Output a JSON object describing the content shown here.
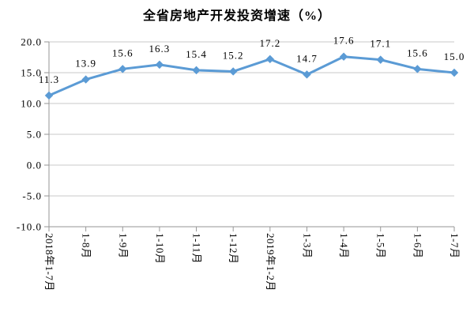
{
  "chart_data": {
    "type": "line",
    "title": "全省房地产开发投资增速（%）",
    "categories": [
      "2018年1-7月",
      "1-8月",
      "1-9月",
      "1-10月",
      "1-11月",
      "1-12月",
      "2019年1-2月",
      "1-3月",
      "1-4月",
      "1-5月",
      "1-6月",
      "1-7月"
    ],
    "values": [
      11.3,
      13.9,
      15.6,
      16.3,
      15.4,
      15.2,
      17.2,
      14.7,
      17.6,
      17.1,
      15.6,
      15.0
    ],
    "point_labels": [
      "11.3",
      "13.9",
      "15.6",
      "16.3",
      "15.4",
      "15.2",
      "17.2",
      "14.7",
      "17.6",
      "17.1",
      "15.6",
      "15.0"
    ],
    "xlabel": "",
    "ylabel": "",
    "ylim": [
      -10.0,
      20.0
    ],
    "ytick_values": [
      20,
      15,
      10,
      5,
      0,
      -5,
      -10
    ],
    "ytick_labels": [
      "20.0",
      "15.0",
      "10.0",
      "5.0",
      "0.0",
      "-5.0",
      "-10.0"
    ],
    "grid": true,
    "legend_position": "none",
    "colors": {
      "series": "#5B9BD5",
      "gridline": "#C8C8C8",
      "axis": "#969696",
      "text": "#000000"
    }
  }
}
